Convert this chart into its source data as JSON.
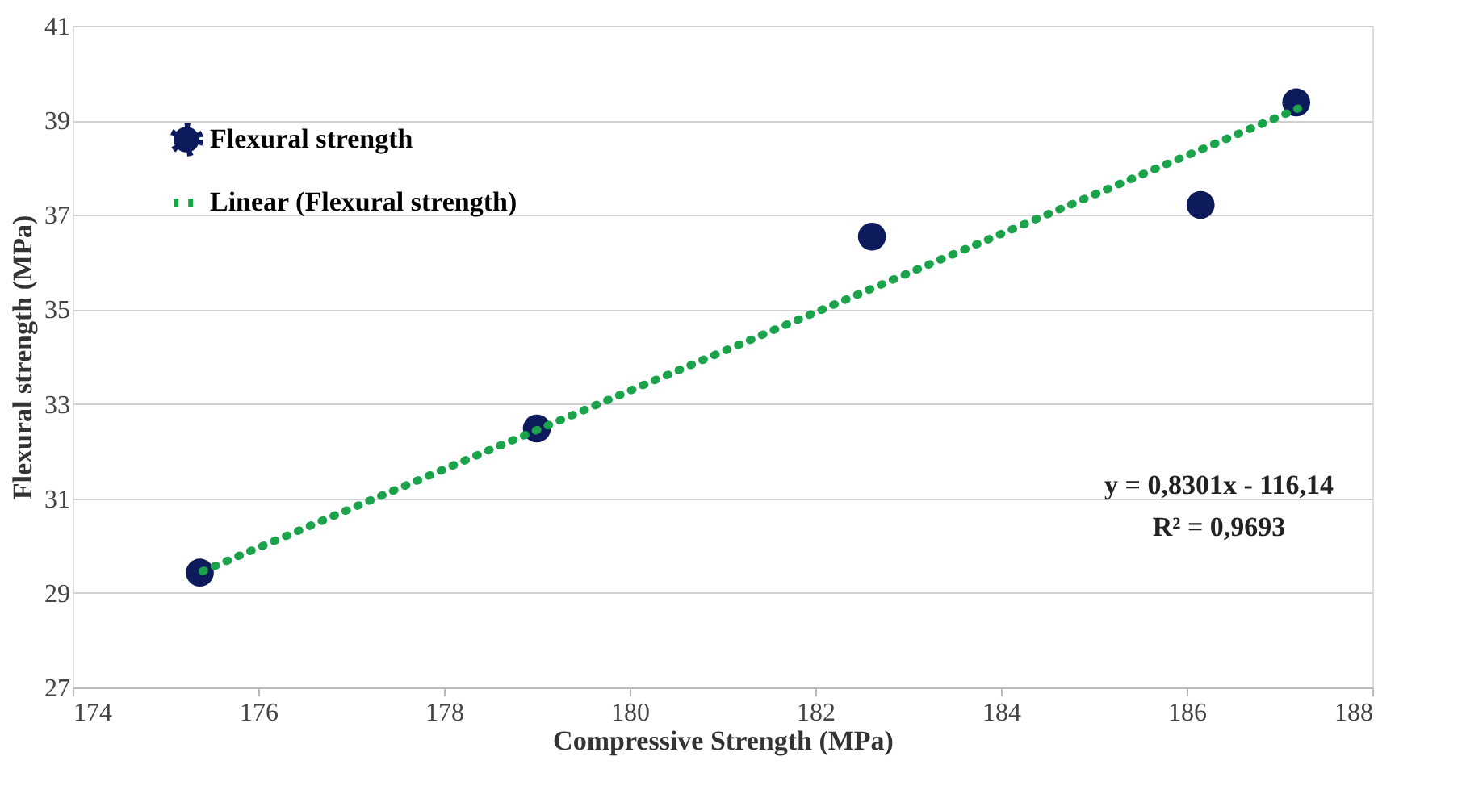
{
  "chart_data": {
    "type": "scatter",
    "xlabel": "Compressive Strength (MPa)",
    "ylabel": "Flexural strength (MPa)",
    "series": [
      {
        "name": "Flexural strength",
        "color": "#0d1a5c",
        "marker": "circle",
        "x": [
          175.37,
          179.0,
          182.61,
          186.15,
          187.18
        ],
        "values": [
          29.43,
          32.48,
          36.54,
          37.21,
          39.38
        ]
      },
      {
        "name": "Linear (Flexural strength)",
        "type": "line",
        "color": "#1aa34a",
        "line_style": "dotted",
        "marker": "none",
        "x": [
          175.4,
          187.2
        ],
        "values": [
          29.46,
          39.25
        ]
      }
    ],
    "xlim": [
      174,
      188
    ],
    "xticks": [
      174,
      176,
      178,
      180,
      182,
      184,
      186,
      188
    ],
    "ylim": [
      27,
      41
    ],
    "yticks": [
      27,
      29,
      31,
      33,
      35,
      37,
      39,
      41
    ],
    "grid": "y",
    "legend": "top left",
    "annotations": [
      "y = 0,8301x - 116,14",
      "R² = 0,9693"
    ]
  }
}
